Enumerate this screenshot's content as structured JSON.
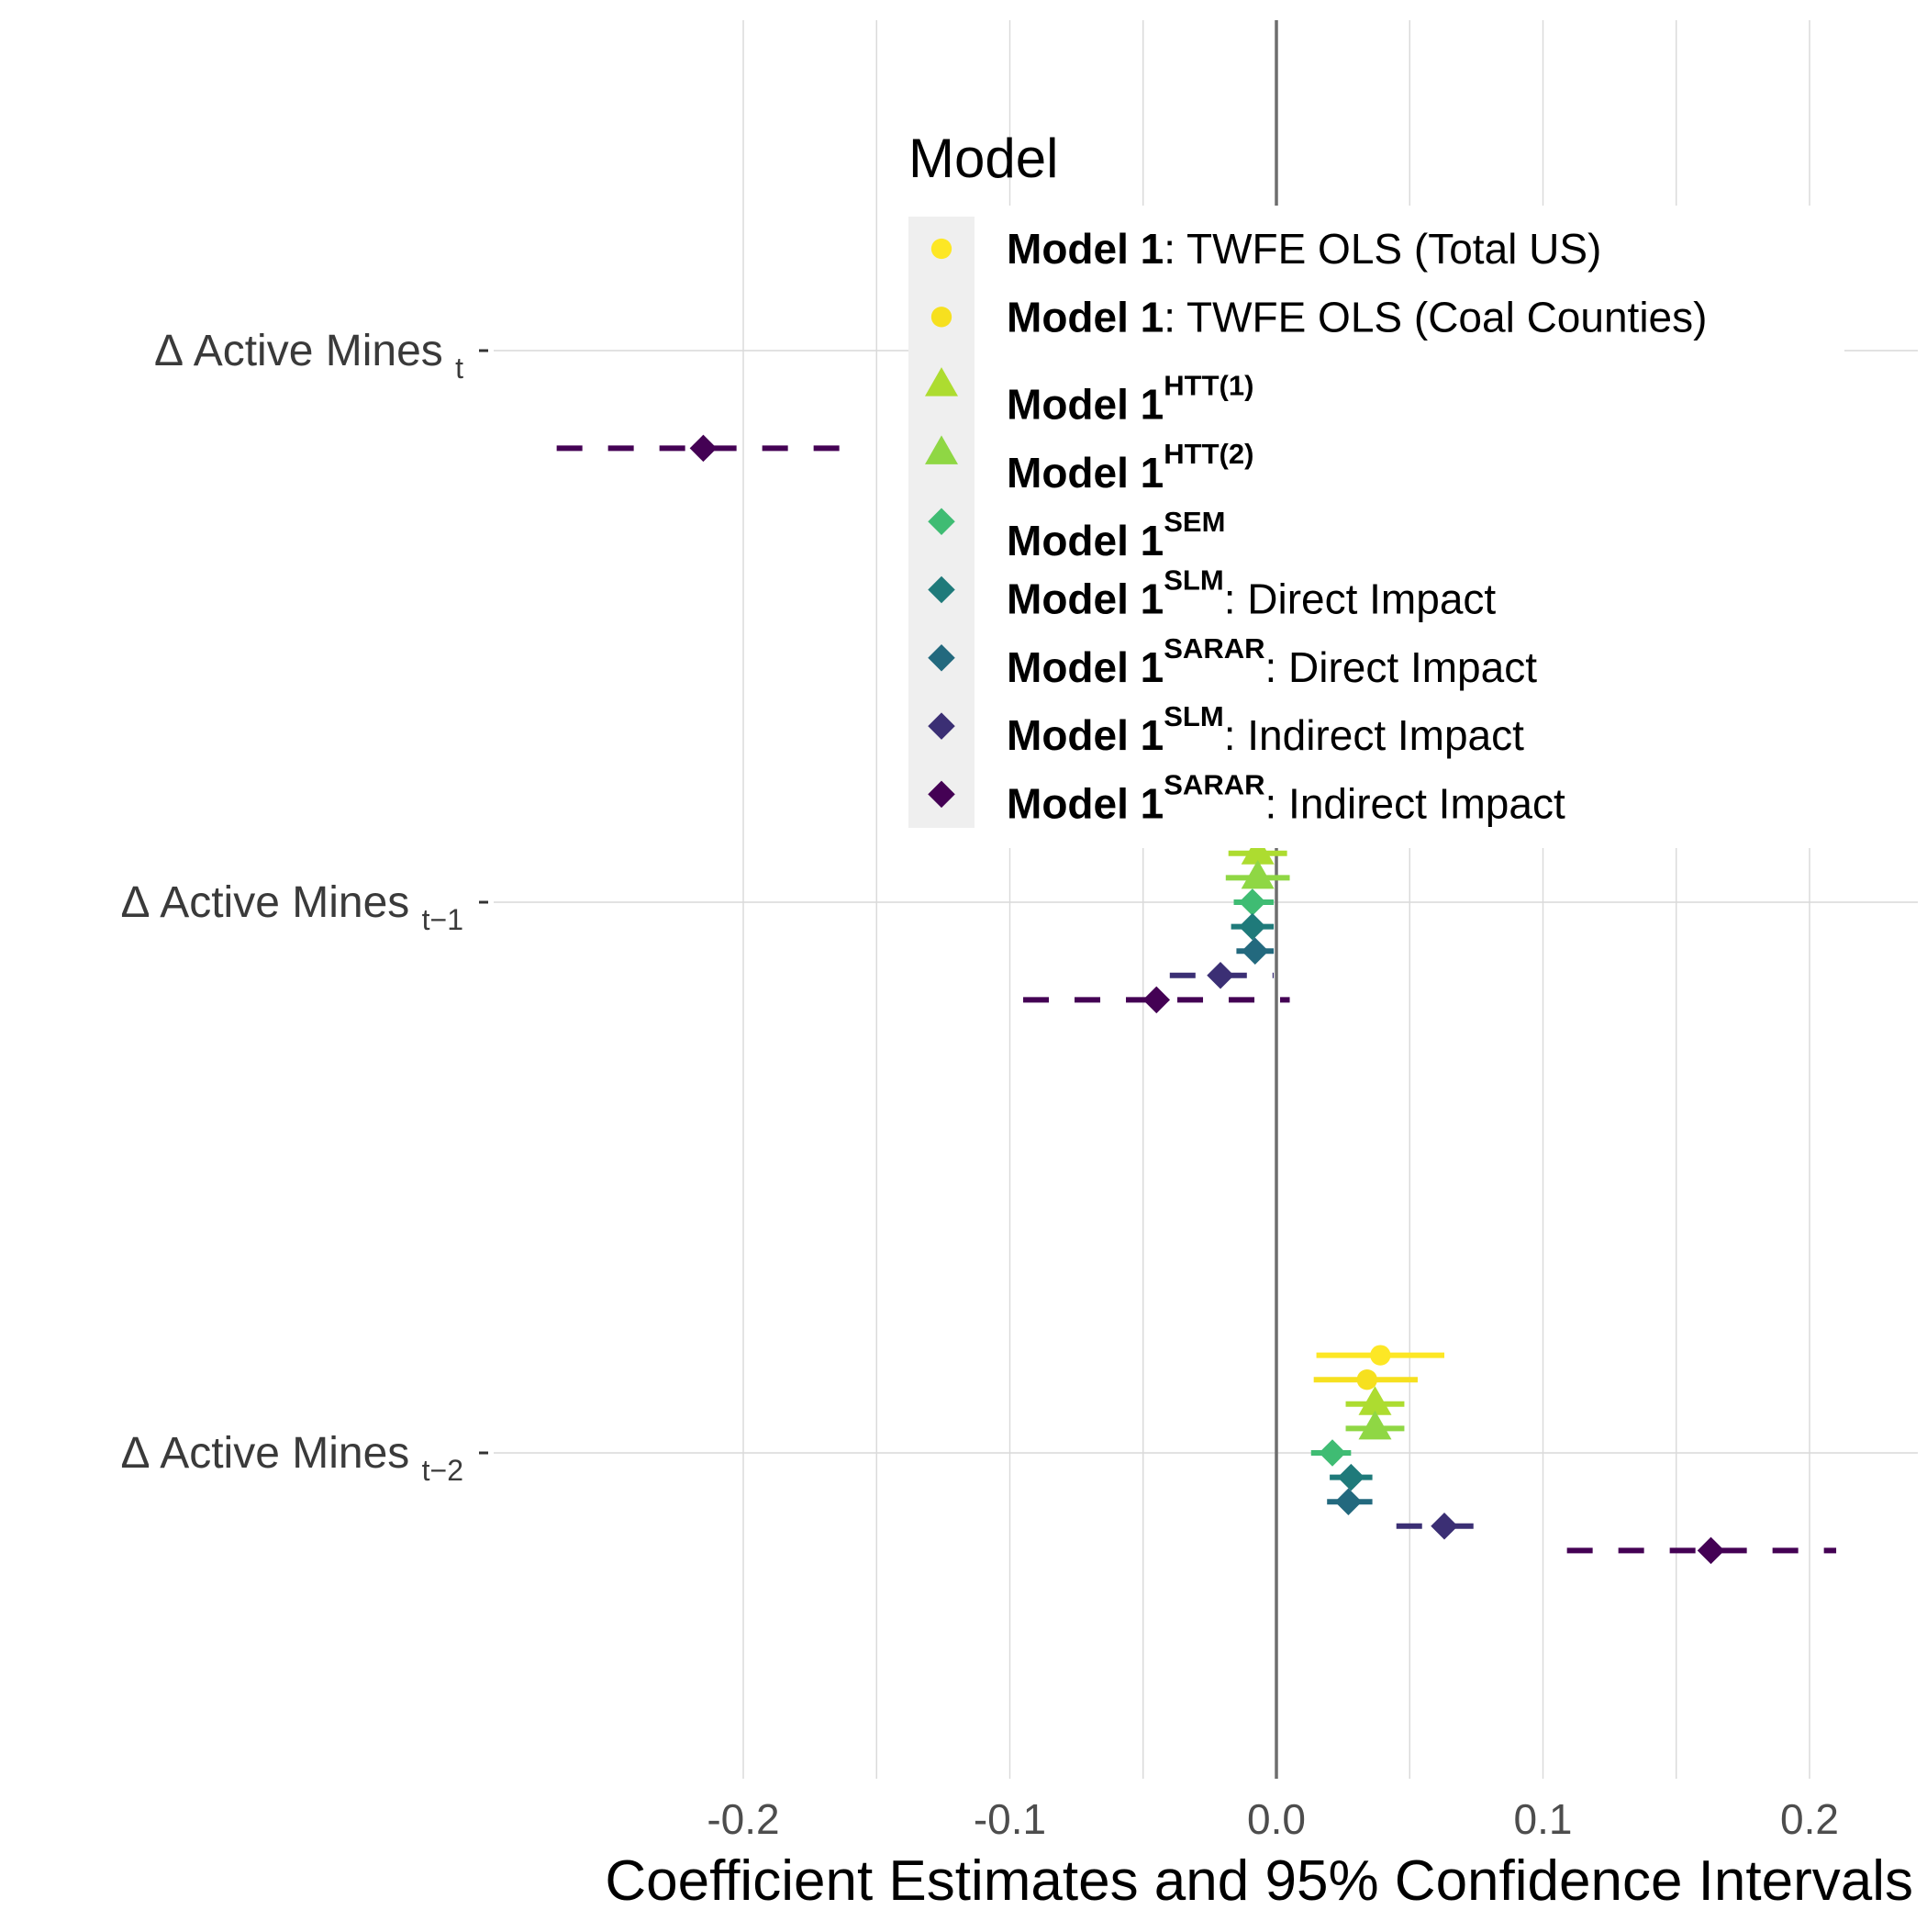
{
  "chart_data": {
    "type": "scatter",
    "subtype": "coefficient-plot",
    "xlabel": "Coefficient Estimates and 95% Confidence Intervals",
    "xlim": [
      -0.2,
      0.2
    ],
    "x_ticks": [
      -0.2,
      -0.1,
      0.0,
      0.1,
      0.2
    ],
    "x_tick_labels": [
      "-0.2",
      "-0.1",
      "0.0",
      "0.1",
      "0.2"
    ],
    "zero_reference_line": 0,
    "grid": true,
    "categories": [
      {
        "base": "Δ Active Mines",
        "sub": "t"
      },
      {
        "base": "Δ Active Mines",
        "sub": "t−1"
      },
      {
        "base": "Δ Active Mines",
        "sub": "t−2"
      }
    ],
    "legend": {
      "title": "Model",
      "placement": "top-right"
    },
    "series": [
      {
        "name_bold": "Model 1",
        "sup": "",
        "suffix": ": TWFE OLS (Total US)",
        "shape": "circle",
        "color": "#FDE725",
        "linestyle": "solid",
        "estimates": [
          null,
          null,
          0.039
        ],
        "ci_low": [
          null,
          null,
          0.015
        ],
        "ci_high": [
          null,
          null,
          0.063
        ]
      },
      {
        "name_bold": "Model 1",
        "sup": "",
        "suffix": ": TWFE OLS (Coal Counties)",
        "shape": "circle",
        "color": "#F6E01F",
        "linestyle": "solid",
        "estimates": [
          null,
          null,
          0.034
        ],
        "ci_low": [
          null,
          null,
          0.014
        ],
        "ci_high": [
          null,
          null,
          0.053
        ]
      },
      {
        "name_bold": "Model 1",
        "sup": "HTT(1)",
        "suffix": "",
        "shape": "triangle",
        "color": "#ADDC30",
        "linestyle": "solid",
        "estimates": [
          null,
          -0.007,
          0.037
        ],
        "ci_low": [
          null,
          -0.018,
          0.026
        ],
        "ci_high": [
          null,
          0.004,
          0.048
        ]
      },
      {
        "name_bold": "Model 1",
        "sup": "HTT(2)",
        "suffix": "",
        "shape": "triangle",
        "color": "#8FD744",
        "linestyle": "solid",
        "estimates": [
          null,
          -0.007,
          0.037
        ],
        "ci_low": [
          null,
          -0.019,
          0.026
        ],
        "ci_high": [
          null,
          0.005,
          0.048
        ]
      },
      {
        "name_bold": "Model 1",
        "sup": "SEM",
        "suffix": "",
        "shape": "diamond",
        "color": "#3FBC73",
        "linestyle": "solid",
        "estimates": [
          null,
          -0.009,
          0.021
        ],
        "ci_low": [
          null,
          -0.016,
          0.013
        ],
        "ci_high": [
          null,
          -0.001,
          0.028
        ]
      },
      {
        "name_bold": "Model 1",
        "sup": "SLM",
        "suffix": ": Direct Impact",
        "shape": "diamond",
        "color": "#1F7A7A",
        "linestyle": "solid",
        "estimates": [
          null,
          -0.009,
          0.028
        ],
        "ci_low": [
          null,
          -0.017,
          0.02
        ],
        "ci_high": [
          null,
          -0.001,
          0.036
        ]
      },
      {
        "name_bold": "Model 1",
        "sup": "SARAR",
        "suffix": ": Direct Impact",
        "shape": "diamond",
        "color": "#23697E",
        "linestyle": "solid",
        "estimates": [
          null,
          -0.008,
          0.027
        ],
        "ci_low": [
          null,
          -0.015,
          0.019
        ],
        "ci_high": [
          null,
          -0.001,
          0.036
        ]
      },
      {
        "name_bold": "Model 1",
        "sup": "SLM",
        "suffix": ": Indirect Impact",
        "shape": "diamond",
        "color": "#3B2F74",
        "linestyle": "dashed",
        "estimates": [
          null,
          -0.021,
          0.063
        ],
        "ci_low": [
          null,
          -0.04,
          0.045
        ],
        "ci_high": [
          null,
          -0.001,
          0.083
        ]
      },
      {
        "name_bold": "Model 1",
        "sup": "SARAR",
        "suffix": ": Indirect Impact",
        "shape": "diamond",
        "color": "#440154",
        "linestyle": "dashed",
        "estimates": [
          -0.215,
          -0.045,
          0.163
        ],
        "ci_low": [
          -0.27,
          -0.095,
          0.109
        ],
        "ci_high": [
          -0.158,
          0.005,
          0.21
        ]
      }
    ]
  }
}
